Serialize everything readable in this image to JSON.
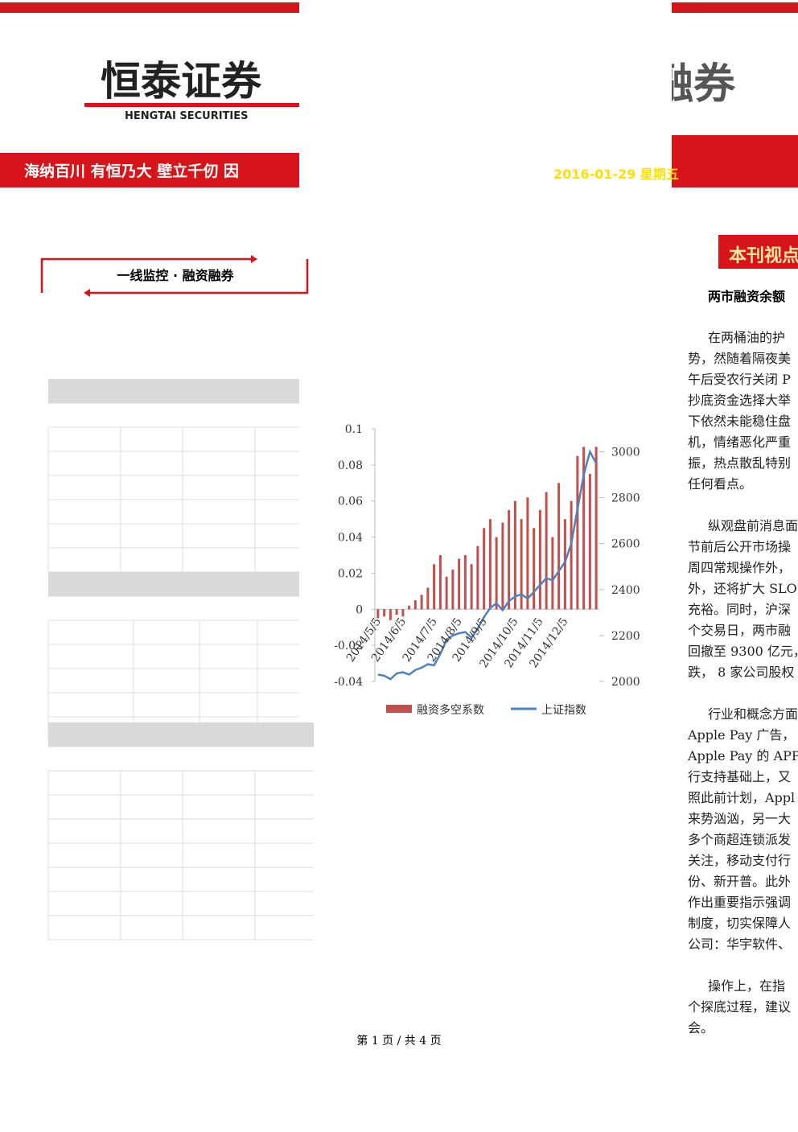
{
  "header": {
    "logo": "恒泰证券",
    "logo_en": "HENGTAI SECURITIES",
    "slogan": "海纳百川 有恒乃大 壁立千仞 因",
    "banner_title": "融券",
    "date": "2016-01-29 星期五"
  },
  "section": {
    "title": "一线监控 · 融资融券"
  },
  "sidebar": {
    "title": "本刊视点",
    "headline": "两市融资余额"
  },
  "paragraphs": [
    [
      "在两桶油的护",
      "势，然随着隔夜美",
      "午后受农行关闭 P",
      "抄底资金选择大举",
      "下依然未能稳住盘",
      "机，情绪恶化严重",
      "振，热点散乱特别",
      "任何看点。"
    ],
    [
      "纵观盘前消息面",
      "节前后公开市场操",
      "周四常规操作外，",
      "外，还将扩大 SLO",
      "充裕。同时，沪深",
      "个交易日，两市融",
      "回撤至 9300 亿元，",
      "跌， 8 家公司股权"
    ],
    [
      "行业和概念方面",
      "Apple Pay 广告，",
      "Apple Pay 的 APP。",
      "行支持基础上，又",
      "照此前计划，Appl",
      "来势汹汹，另一大",
      "多个商超连锁派发",
      "关注，移动支付行",
      "份、新开普。此外",
      "作出重要指示强调",
      "制度，切实保障人",
      "公司：华宇软件、"
    ],
    [
      "操作上，在指",
      "个探底过程，建议",
      "会。"
    ]
  ],
  "footer": "第 1 页 / 共 4 页",
  "chart_data": {
    "type": "bar-line",
    "categories": [
      "2014/5/5",
      null,
      null,
      null,
      "2014/6/5",
      null,
      null,
      null,
      null,
      "2014/7/5",
      null,
      null,
      null,
      "2014/8/5",
      null,
      null,
      null,
      "2014/9/5",
      null,
      null,
      null,
      null,
      "2014/10/5",
      null,
      null,
      null,
      "2014/11/5",
      null,
      null,
      null,
      "2014/12/5",
      null,
      null,
      null,
      null,
      null
    ],
    "series": [
      {
        "name": "融资多空系数",
        "color": "#c0504d",
        "values": [
          -0.005,
          -0.004,
          -0.006,
          -0.003,
          -0.004,
          0.002,
          0.005,
          0.008,
          0.012,
          0.025,
          0.03,
          0.018,
          0.022,
          0.028,
          0.03,
          0.025,
          0.035,
          0.045,
          0.05,
          0.04,
          0.048,
          0.055,
          0.06,
          0.05,
          0.062,
          0.045,
          0.055,
          0.065,
          0.04,
          0.07,
          0.05,
          0.06,
          0.085,
          0.09,
          0.075,
          0.09
        ]
      },
      {
        "name": "上证指数",
        "color": "#4f81bd",
        "axis": "y2",
        "values": [
          2030,
          2025,
          2010,
          2035,
          2040,
          2030,
          2050,
          2060,
          2075,
          2070,
          2120,
          2180,
          2200,
          2210,
          2215,
          2190,
          2230,
          2280,
          2320,
          2340,
          2310,
          2350,
          2370,
          2380,
          2360,
          2390,
          2420,
          2450,
          2440,
          2480,
          2520,
          2600,
          2750,
          2900,
          3000,
          2950
        ]
      }
    ],
    "ylim": [
      -0.04,
      0.1
    ],
    "yticks": [
      -0.04,
      -0.02,
      0,
      0.02,
      0.04,
      0.06,
      0.08,
      0.1
    ],
    "y2lim": [
      2000,
      3100
    ],
    "y2ticks": [
      2000,
      2200,
      2400,
      2600,
      2800,
      3000
    ]
  }
}
